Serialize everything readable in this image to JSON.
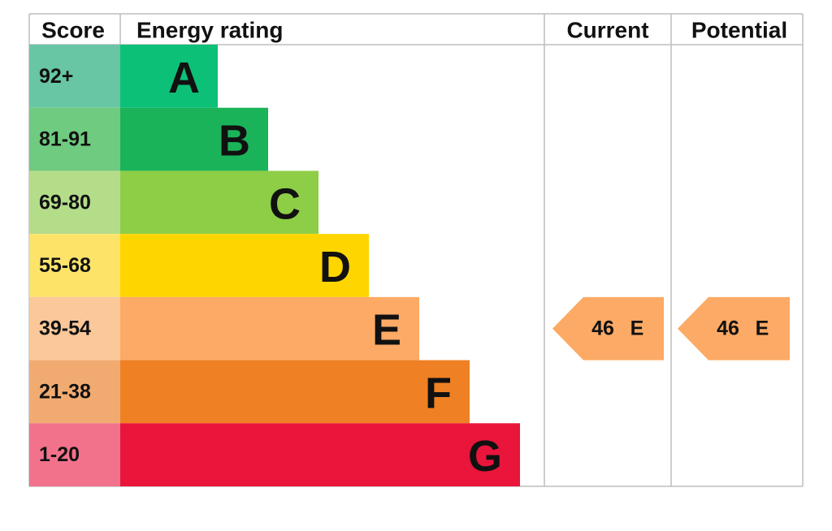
{
  "header": {
    "score": "Score",
    "energy_rating": "Energy rating",
    "current": "Current",
    "potential": "Potential"
  },
  "rows": [
    {
      "score": "92+",
      "rating": "A",
      "score_color": "#68c6a4",
      "bar_color": "#0cc177"
    },
    {
      "score": "81-91",
      "rating": "B",
      "score_color": "#6fcb7f",
      "bar_color": "#1bb35a"
    },
    {
      "score": "69-80",
      "rating": "C",
      "score_color": "#b4dd8a",
      "bar_color": "#8dce46"
    },
    {
      "score": "55-68",
      "rating": "D",
      "score_color": "#fde469",
      "bar_color": "#ffd500"
    },
    {
      "score": "39-54",
      "rating": "E",
      "score_color": "#fbc89a",
      "bar_color": "#fcaa65"
    },
    {
      "score": "21-38",
      "rating": "F",
      "score_color": "#f1ab71",
      "bar_color": "#ef8023"
    },
    {
      "score": "1-20",
      "rating": "G",
      "score_color": "#f2728c",
      "bar_color": "#e9153b"
    }
  ],
  "current": {
    "score": 46,
    "rating": "E"
  },
  "potential": {
    "score": 46,
    "rating": "E"
  }
}
